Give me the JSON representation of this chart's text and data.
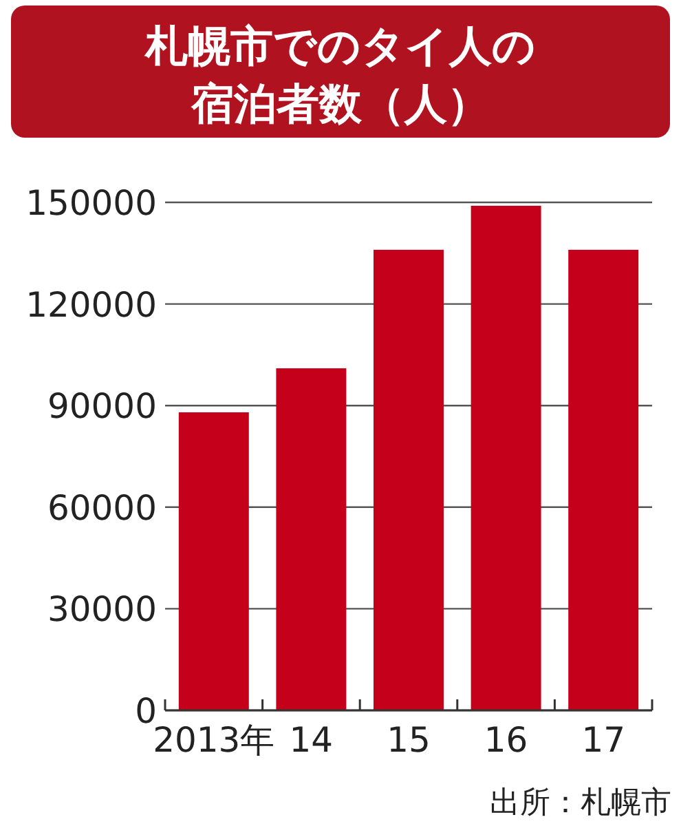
{
  "chart_data": {
    "type": "bar",
    "title": "札幌市でのタイ人の宿泊者数（人）",
    "categories": [
      "2013年",
      "14",
      "15",
      "16",
      "17"
    ],
    "values": [
      88000,
      101000,
      136000,
      149000,
      136000
    ],
    "color": "#c4001a",
    "ylim": [
      0,
      150000
    ],
    "yticks": [
      0,
      30000,
      60000,
      90000,
      120000,
      150000
    ],
    "grid": "y",
    "annotations": [
      "出所：札幌市"
    ]
  }
}
